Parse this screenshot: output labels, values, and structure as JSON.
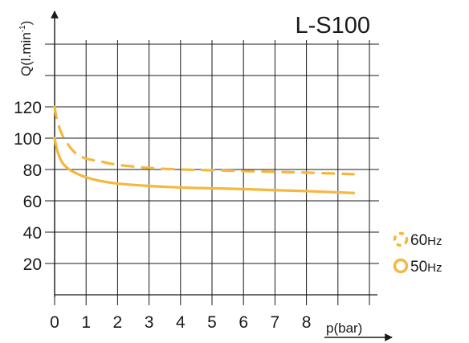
{
  "chart_data": {
    "type": "line",
    "title": "L-S100",
    "xlabel": "p(bar)",
    "ylabel": "Q(l.min-1)",
    "xlim": [
      0,
      10
    ],
    "ylim": [
      0,
      160
    ],
    "x_ticks": [
      "0",
      "1",
      "2",
      "3",
      "4",
      "5",
      "6",
      "7",
      "8"
    ],
    "y_ticks": [
      "20",
      "40",
      "60",
      "80",
      "100",
      "120"
    ],
    "grid": true,
    "legend_position": "bottom-right",
    "series": [
      {
        "name": "60Hz",
        "style": "dashed",
        "color": "#f5b83d",
        "x": [
          0,
          0.05,
          0.1,
          0.2,
          0.3,
          0.5,
          0.7,
          1.0,
          1.5,
          2.0,
          3.0,
          4.0,
          5.0,
          6.0,
          7.0,
          8.0,
          9.5
        ],
        "y": [
          120,
          114,
          110,
          104,
          100,
          94,
          90,
          87,
          85,
          83,
          81,
          80,
          79.5,
          79,
          78.5,
          78,
          77
        ]
      },
      {
        "name": "50Hz",
        "style": "solid",
        "color": "#f5b83d",
        "x": [
          0,
          0.05,
          0.1,
          0.2,
          0.3,
          0.5,
          0.7,
          1.0,
          1.5,
          2.0,
          3.0,
          4.0,
          5.0,
          6.0,
          7.0,
          8.0,
          9.5
        ],
        "y": [
          100,
          95,
          91,
          86,
          83,
          79.5,
          77.5,
          75,
          72.5,
          71,
          69.5,
          68.5,
          68,
          67.5,
          66.8,
          66.2,
          65
        ]
      }
    ]
  },
  "labels": {
    "ylabel_main": "Q(l.min",
    "ylabel_sup": "-1",
    "ylabel_close": ")",
    "legend_60_num": "60",
    "legend_60_unit": "Hz",
    "legend_50_num": "50",
    "legend_50_unit": "Hz"
  }
}
